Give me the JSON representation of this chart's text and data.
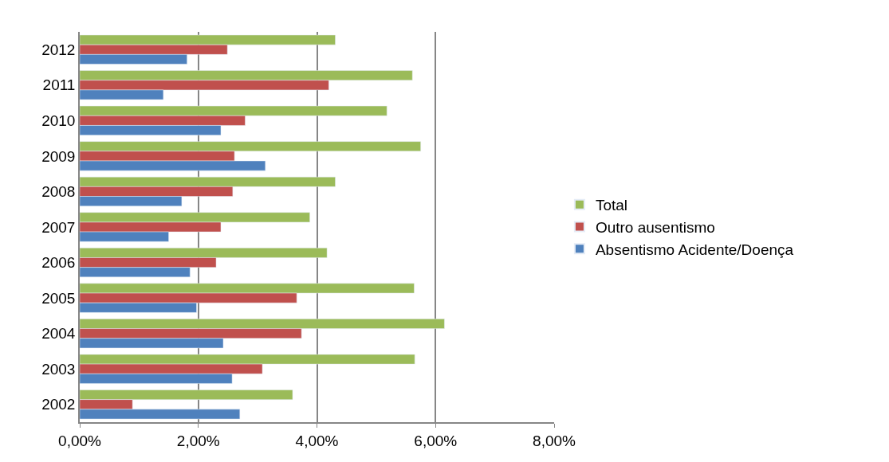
{
  "chart_data": {
    "type": "bar",
    "orientation": "horizontal",
    "categories": [
      "2012",
      "2011",
      "2010",
      "2009",
      "2008",
      "2007",
      "2006",
      "2005",
      "2004",
      "2003",
      "2002"
    ],
    "series": [
      {
        "name": "Total",
        "color": "#9bbb59",
        "values": [
          4.31,
          5.61,
          5.18,
          5.75,
          4.31,
          3.88,
          4.17,
          5.64,
          6.15,
          5.65,
          3.59
        ]
      },
      {
        "name": "Outro ausentismo",
        "color": "#c0504d",
        "values": [
          2.49,
          4.2,
          2.79,
          2.61,
          2.58,
          2.38,
          2.3,
          3.66,
          3.74,
          3.08,
          0.89
        ]
      },
      {
        "name": "Absentismo Acidente/Doença",
        "color": "#4f81bd",
        "values": [
          1.81,
          1.41,
          2.38,
          3.13,
          1.72,
          1.5,
          1.86,
          1.97,
          2.42,
          2.57,
          2.7
        ]
      }
    ],
    "xlim": [
      0,
      8
    ],
    "xticks": [
      {
        "value": 0,
        "label": "0,00%"
      },
      {
        "value": 2,
        "label": "2,00%"
      },
      {
        "value": 4,
        "label": "4,00%"
      },
      {
        "value": 6,
        "label": "6,00%"
      },
      {
        "value": 8,
        "label": "8,00%"
      }
    ],
    "grid": "x",
    "legend": "right"
  }
}
